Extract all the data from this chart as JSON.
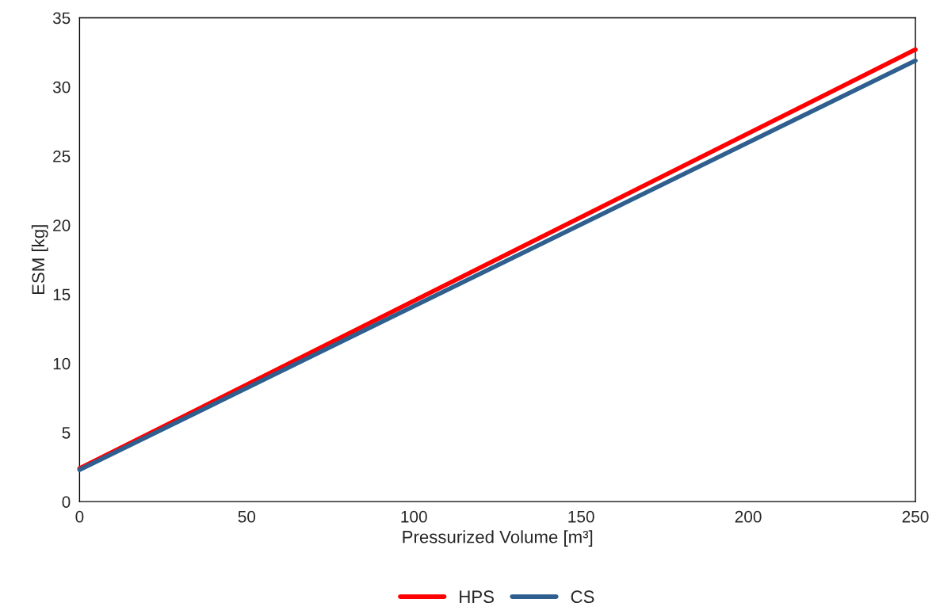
{
  "chart_data": {
    "type": "line",
    "xlabel": "Pressurized Volume [m³]",
    "ylabel": "ESM [kg]",
    "series": [
      {
        "name": "HPS",
        "color": "#ff0000",
        "values": [
          2.4,
          32.7
        ]
      },
      {
        "name": "CS",
        "color": "#2e5f8f",
        "values": [
          2.3,
          31.9
        ]
      }
    ],
    "x": [
      0,
      250
    ],
    "xlim": [
      0,
      250
    ],
    "xticks": [
      0,
      50,
      100,
      150,
      200,
      250
    ],
    "ylim": [
      0,
      35
    ],
    "yticks": [
      0,
      5,
      10,
      15,
      20,
      25,
      30,
      35
    ],
    "grid": false,
    "legend": "bottom",
    "marker": "none",
    "line_style": "solid"
  }
}
